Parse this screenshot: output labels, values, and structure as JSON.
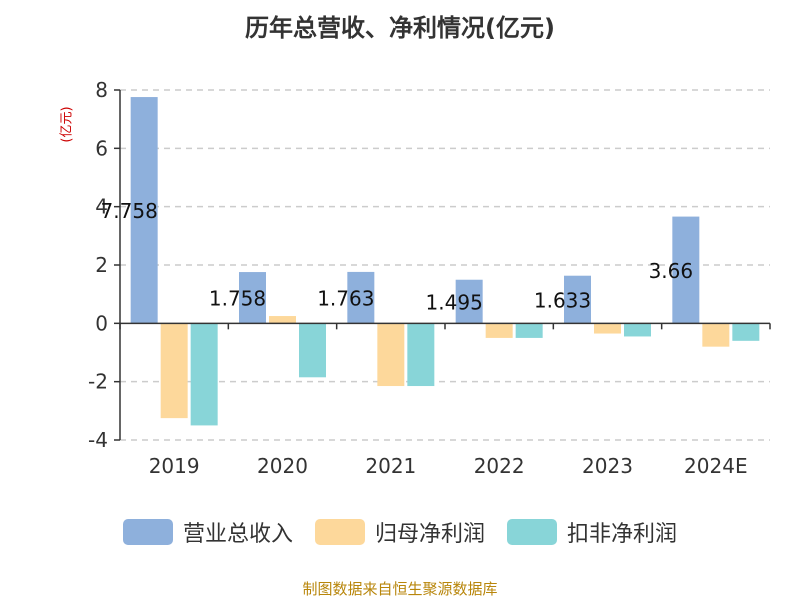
{
  "chart_data": {
    "type": "bar",
    "title": "历年总营收、净利情况(亿元)",
    "unit_label": "(亿元)",
    "categories": [
      "2019",
      "2020",
      "2021",
      "2022",
      "2023",
      "2024E"
    ],
    "series": [
      {
        "name": "营业总收入",
        "color": "#8eb0dc",
        "values": [
          7.758,
          1.758,
          1.763,
          1.495,
          1.633,
          3.66
        ]
      },
      {
        "name": "归母净利润",
        "color": "#fdd89b",
        "values": [
          -3.25,
          0.25,
          -2.15,
          -0.5,
          -0.35,
          -0.8
        ]
      },
      {
        "name": "扣非净利润",
        "color": "#88d5d8",
        "values": [
          -3.5,
          -1.85,
          -2.15,
          -0.5,
          -0.45,
          -0.6
        ]
      }
    ],
    "data_labels": [
      "7.758",
      "1.758",
      "1.763",
      "1.495",
      "1.633",
      "3.66"
    ],
    "ylim": [
      -4,
      8
    ],
    "yticks": [
      8,
      6,
      4,
      2,
      0,
      -2,
      -4
    ],
    "grid": true,
    "legend_position": "bottom"
  },
  "source": "制图数据来自恒生聚源数据库"
}
